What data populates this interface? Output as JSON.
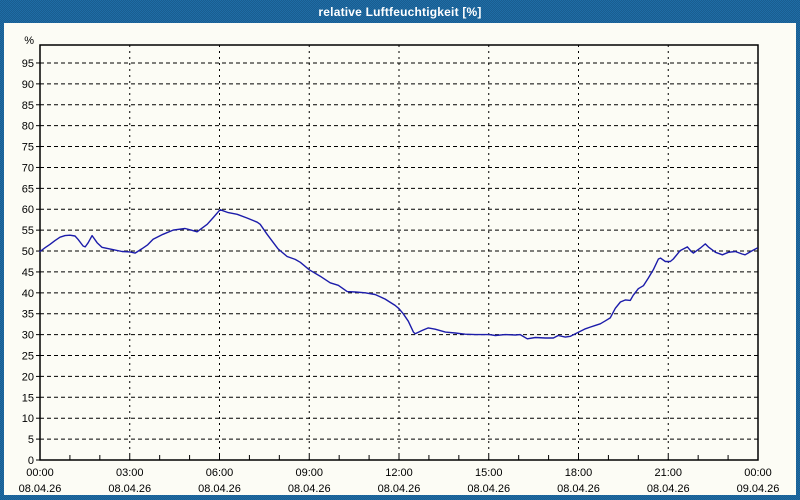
{
  "window": {
    "title": "relative Luftfeuchtigkeit [%]"
  },
  "colors": {
    "frame_blue": "#1e6ca6",
    "panel_bg": "#fcfcf5",
    "line_color": "#1c1caa",
    "grid_color": "#000000",
    "axis_color": "#000000",
    "title_text": "#ffffff"
  },
  "chart_data": {
    "type": "line",
    "title": "relative Luftfeuchtigkeit [%]",
    "ylabel": "%",
    "xlabel": "",
    "ylim": [
      0,
      99.3
    ],
    "xlim": [
      0,
      24
    ],
    "grid": "dashed",
    "legend": "none",
    "yticks": [
      0,
      5,
      10,
      15,
      20,
      25,
      30,
      35,
      40,
      45,
      50,
      55,
      60,
      65,
      70,
      75,
      80,
      85,
      90,
      95
    ],
    "major_tick_hours": 3,
    "minor_tick_hours": 1,
    "x_ticks": [
      {
        "hour": 0,
        "time": "00:00",
        "date": "08.04.26"
      },
      {
        "hour": 3,
        "time": "03:00",
        "date": "08.04.26"
      },
      {
        "hour": 6,
        "time": "06:00",
        "date": "08.04.26"
      },
      {
        "hour": 9,
        "time": "09:00",
        "date": "08.04.26"
      },
      {
        "hour": 12,
        "time": "12:00",
        "date": "08.04.26"
      },
      {
        "hour": 15,
        "time": "15:00",
        "date": "08.04.26"
      },
      {
        "hour": 18,
        "time": "18:00",
        "date": "08.04.26"
      },
      {
        "hour": 21,
        "time": "21:00",
        "date": "08.04.26"
      },
      {
        "hour": 24,
        "time": "00:00",
        "date": "09.04.26"
      }
    ],
    "series_name": "relative Luftfeuchtigkeit",
    "x_hours": [
      0,
      0.17,
      0.33,
      0.5,
      0.67,
      0.84,
      1.0,
      1.17,
      1.27,
      1.44,
      1.51,
      1.61,
      1.74,
      1.91,
      2.07,
      2.41,
      2.74,
      3.01,
      3.18,
      3.4,
      3.6,
      3.78,
      4.11,
      4.45,
      4.85,
      5.05,
      5.25,
      5.42,
      5.59,
      5.79,
      6.02,
      6.29,
      6.59,
      6.92,
      7.26,
      7.36,
      7.59,
      7.79,
      7.96,
      8.26,
      8.53,
      8.7,
      9.0,
      9.36,
      9.7,
      9.97,
      10.27,
      10.54,
      10.87,
      11.2,
      11.54,
      11.71,
      11.87,
      12.0,
      12.14,
      12.31,
      12.48,
      12.54,
      12.78,
      12.98,
      13.21,
      13.55,
      13.88,
      14.21,
      14.55,
      15.02,
      15.22,
      15.55,
      15.89,
      16.05,
      16.29,
      16.56,
      16.89,
      17.16,
      17.32,
      17.56,
      17.73,
      18.03,
      18.23,
      18.39,
      18.56,
      18.73,
      18.9,
      19.06,
      19.23,
      19.4,
      19.57,
      19.73,
      19.83,
      20.0,
      20.17,
      20.33,
      20.5,
      20.67,
      20.74,
      20.9,
      21.07,
      21.17,
      21.4,
      21.64,
      21.77,
      21.84,
      22.07,
      22.24,
      22.34,
      22.58,
      22.81,
      23.01,
      23.24,
      23.47,
      23.57,
      23.81,
      23.97
    ],
    "values": [
      49.9,
      50.8,
      51.6,
      52.5,
      53.3,
      53.7,
      53.8,
      53.6,
      52.8,
      51.2,
      51.0,
      52.0,
      53.7,
      52.0,
      50.9,
      50.4,
      49.9,
      49.8,
      49.5,
      50.5,
      51.5,
      52.8,
      54.0,
      55.0,
      55.4,
      55.0,
      54.6,
      55.5,
      56.4,
      58.0,
      59.9,
      59.2,
      58.8,
      57.9,
      56.9,
      56.4,
      54.0,
      52.1,
      50.5,
      48.7,
      48.0,
      47.3,
      45.5,
      44.0,
      42.4,
      41.8,
      40.3,
      40.2,
      40.0,
      39.6,
      38.5,
      37.7,
      37.0,
      36.2,
      35.0,
      33.2,
      30.6,
      30.2,
      31.0,
      31.6,
      31.3,
      30.6,
      30.4,
      30.1,
      30.0,
      30.0,
      29.8,
      30.0,
      29.9,
      30.0,
      29.0,
      29.3,
      29.2,
      29.2,
      29.8,
      29.4,
      29.6,
      30.7,
      31.4,
      31.8,
      32.2,
      32.6,
      33.3,
      34.0,
      36.3,
      37.8,
      38.3,
      38.2,
      39.4,
      41.0,
      41.7,
      43.5,
      45.5,
      48.1,
      48.3,
      47.5,
      47.5,
      48.1,
      50.1,
      51.0,
      49.9,
      49.5,
      50.7,
      51.7,
      51.0,
      49.7,
      49.1,
      49.7,
      49.9,
      49.3,
      49.1,
      50.1,
      50.7
    ]
  }
}
